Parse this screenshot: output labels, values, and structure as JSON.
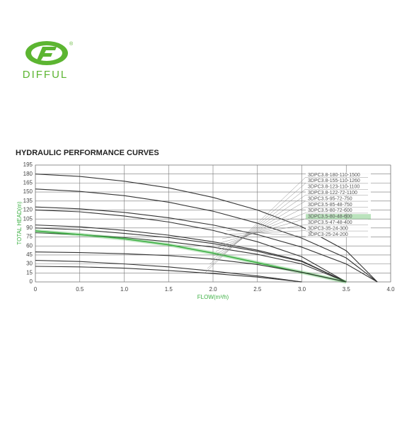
{
  "header": {
    "brand": "DIFFUL",
    "registered": "®"
  },
  "chart_data": {
    "type": "line",
    "title": "HYDRAULIC PERFORMANCE CURVES",
    "x_label": "FLOW(m³/h)",
    "y_label": "TOTAL HEAD(m)",
    "xlim": [
      0,
      4
    ],
    "ylim": [
      0,
      195
    ],
    "xticks": [
      0,
      0.5,
      {
        "value": 1,
        "label": "1.0"
      },
      1.5,
      {
        "value": 2,
        "label": "2.0"
      },
      2.5,
      {
        "value": 3,
        "label": "3.0"
      },
      3.5,
      {
        "value": 4,
        "label": "4.0"
      }
    ],
    "yticks": [
      0,
      15,
      30,
      45,
      60,
      75,
      90,
      105,
      120,
      135,
      150,
      165,
      180,
      195
    ],
    "grid": true,
    "series": [
      {
        "name": "3DPC3.8-180-110-1500",
        "color": "#333333",
        "x": [
          0,
          0.5,
          1,
          1.5,
          2,
          2.5,
          3,
          3.5,
          3.85
        ],
        "values": [
          180,
          176,
          168,
          157,
          141,
          120,
          92,
          52,
          0
        ]
      },
      {
        "name": "3DPC3.8-155-110-1260",
        "color": "#333333",
        "x": [
          0,
          0.5,
          1,
          1.5,
          2,
          2.5,
          3,
          3.5,
          3.85
        ],
        "values": [
          155,
          151,
          144,
          133,
          118,
          98,
          73,
          40,
          0
        ]
      },
      {
        "name": "3DPC3.8-123-110-1100",
        "color": "#333333",
        "x": [
          0,
          0.5,
          1,
          1.5,
          2,
          2.5,
          3,
          3.5,
          3.85
        ],
        "values": [
          125,
          122,
          116,
          107,
          95,
          79,
          58,
          30,
          0
        ]
      },
      {
        "name": "3DPC3.8-122-72-1100",
        "color": "#333333",
        "x": [
          0,
          0.5,
          1,
          1.5,
          2,
          2.5,
          3,
          3.5
        ],
        "values": [
          120,
          117,
          110,
          100,
          86,
          67,
          42,
          0
        ]
      },
      {
        "name": "3DPC3.5-95-72-750",
        "color": "#333333",
        "x": [
          0,
          0.5,
          1,
          1.5,
          2,
          2.5,
          3,
          3.5
        ],
        "values": [
          95,
          92,
          86,
          78,
          67,
          53,
          35,
          0
        ]
      },
      {
        "name": "3DPC3.5-85-48-750",
        "color": "#333333",
        "x": [
          0,
          0.5,
          1,
          1.5,
          2,
          2.5,
          3,
          3.5
        ],
        "values": [
          90,
          87,
          81,
          74,
          64,
          51,
          34,
          0
        ]
      },
      {
        "name": "3DPC3.5-80-72-600",
        "color": "#333333",
        "x": [
          0,
          0.5,
          1,
          1.5,
          2,
          2.5,
          3,
          3.5
        ],
        "values": [
          82,
          79,
          74,
          67,
          58,
          46,
          30,
          0
        ]
      },
      {
        "name": "3DPC3.5-80-48-600",
        "color": "#3cb043",
        "highlight": true,
        "x": [
          0,
          0.5,
          1,
          1.5,
          2,
          2.5,
          3,
          3.5
        ],
        "values": [
          85,
          79,
          72,
          62,
          48,
          32,
          16,
          0
        ]
      },
      {
        "name": "3DPC3.5-47-48-400",
        "color": "#333333",
        "x": [
          0,
          0.5,
          1,
          1.5,
          2,
          2.5,
          3,
          3.5
        ],
        "values": [
          50,
          49,
          47,
          44,
          38,
          29,
          16,
          0
        ]
      },
      {
        "name": "3DPC3-35-24-300",
        "color": "#333333",
        "x": [
          0,
          0.5,
          1,
          1.5,
          2,
          2.5,
          3
        ],
        "values": [
          36,
          34,
          30,
          25,
          18,
          10,
          0
        ]
      },
      {
        "name": "3DPC3-25-24-200",
        "color": "#333333",
        "x": [
          0,
          0.5,
          1,
          1.5,
          2,
          2.5,
          3
        ],
        "values": [
          26,
          25,
          23,
          19,
          14,
          8,
          0
        ]
      }
    ]
  }
}
